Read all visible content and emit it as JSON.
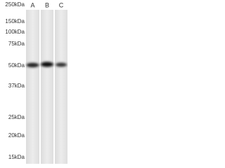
{
  "markers": [
    "250kDa",
    "150kDa",
    "100kDa",
    "75kDa",
    "50kDa",
    "37kDa",
    "25kDa",
    "20kDa",
    "15kDa"
  ],
  "lanes": [
    "A",
    "B",
    "C"
  ]
}
